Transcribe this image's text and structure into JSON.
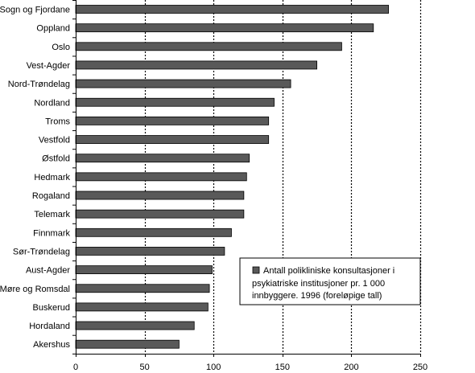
{
  "chart_data": {
    "type": "bar",
    "orientation": "horizontal",
    "categories": [
      "Sogn og Fjordane",
      "Oppland",
      "Oslo",
      "Vest-Agder",
      "Nord-Trøndelag",
      "Nordland",
      "Troms",
      "Vestfold",
      "Østfold",
      "Hedmark",
      "Rogaland",
      "Telemark",
      "Finnmark",
      "Sør-Trøndelag",
      "Aust-Agder",
      "Møre og Romsdal",
      "Buskerud",
      "Hordaland",
      "Akershus"
    ],
    "series": [
      {
        "name": "Antall polikliniske konsultasjoner i psykiatriske institusjoner pr. 1 000 innbyggere. 1996 (foreløpige tall)",
        "values": [
          227,
          216,
          193,
          175,
          156,
          144,
          140,
          140,
          126,
          124,
          122,
          122,
          113,
          108,
          99,
          97,
          96,
          86,
          75
        ]
      }
    ],
    "xlim": [
      0,
      250
    ],
    "xticks": [
      0,
      50,
      100,
      150,
      200,
      250
    ],
    "xlabel": "",
    "ylabel": "",
    "title": "",
    "grid": "vertical dashed",
    "legend": {
      "position": "bottom-right",
      "lines": [
        "Antall polikliniske konsultasjoner i",
        "psykiatriske institusjoner pr. 1 000",
        "innbyggere. 1996 (foreløpige tall)"
      ]
    },
    "colors": {
      "bar_fill": "#595959",
      "bar_stroke": "#000000",
      "grid": "#000000"
    }
  }
}
